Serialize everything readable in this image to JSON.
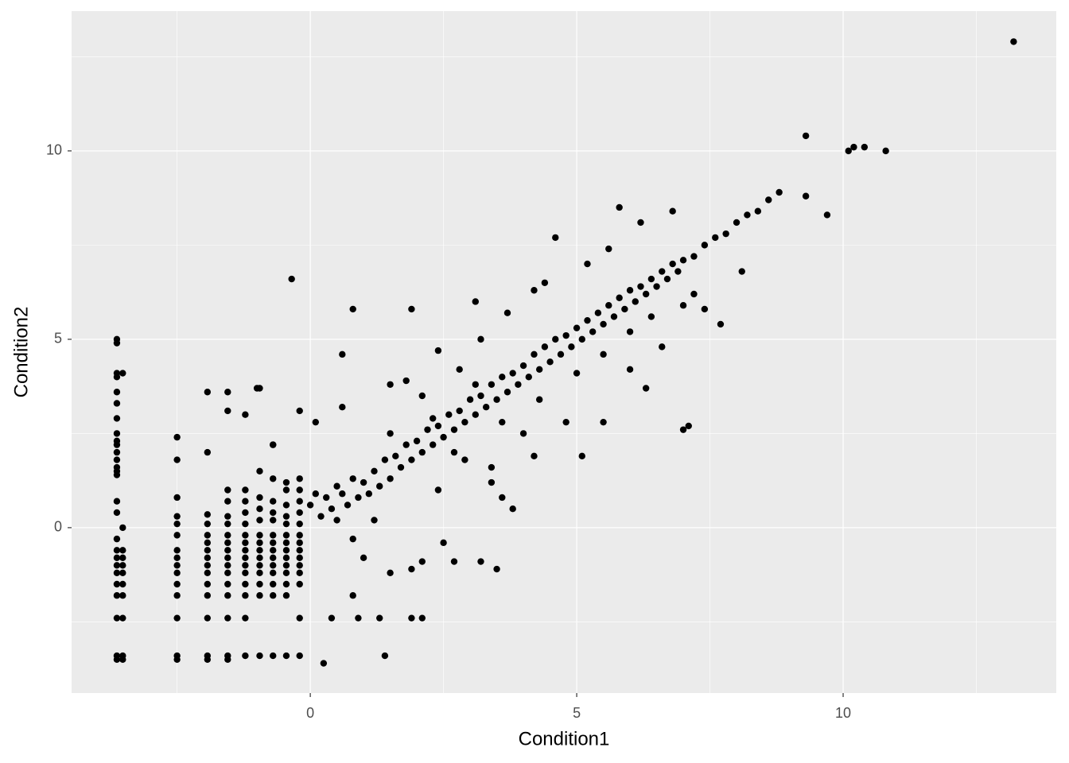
{
  "chart_data": {
    "type": "scatter",
    "x_label": "Condition1",
    "y_label": "Condition2",
    "color": "#000000",
    "background": "#ebebeb",
    "grid": true,
    "xlim": [
      -4.48,
      14.0
    ],
    "ylim": [
      -4.39,
      13.71
    ],
    "xticks": [
      0,
      5,
      10
    ],
    "yticks": [
      0,
      5,
      10
    ],
    "xminor": [
      -2.5,
      2.5,
      7.5,
      12.5
    ],
    "yminor": [
      -2.5,
      2.5,
      7.5,
      12.5
    ],
    "x": [
      -3.63,
      -3.63,
      -3.63,
      -3.63,
      -3.63,
      -3.63,
      -3.63,
      -3.63,
      -3.63,
      -3.63,
      -3.63,
      -3.63,
      -3.63,
      -3.63,
      -3.63,
      -3.63,
      -3.63,
      -3.63,
      -3.63,
      -3.63,
      -3.63,
      -3.63,
      -3.63,
      -3.63,
      -3.63,
      -3.63,
      -3.63,
      -3.52,
      -3.52,
      -3.52,
      -3.52,
      -3.52,
      -3.52,
      -3.52,
      -3.52,
      -3.52,
      -3.52,
      -3.52,
      -2.5,
      -2.5,
      -2.5,
      -2.5,
      -2.5,
      -2.5,
      -2.5,
      -2.5,
      -2.5,
      -2.5,
      -2.5,
      -2.5,
      -2.5,
      -2.5,
      -2.5,
      -1.93,
      -1.93,
      -1.93,
      -1.93,
      -1.93,
      -1.93,
      -1.93,
      -1.93,
      -1.93,
      -1.93,
      -1.93,
      -1.93,
      -1.93,
      -1.93,
      -1.93,
      -1.55,
      -1.55,
      -1.55,
      -1.55,
      -1.55,
      -1.55,
      -1.55,
      -1.55,
      -1.55,
      -1.55,
      -1.55,
      -1.55,
      -1.55,
      -1.55,
      -1.55,
      -1.55,
      -1.55,
      -1.22,
      -1.22,
      -1.22,
      -1.22,
      -1.22,
      -1.22,
      -1.22,
      -1.22,
      -1.22,
      -1.22,
      -1.22,
      -1.22,
      -1.22,
      -1.22,
      -1.22,
      -0.95,
      -0.95,
      -0.95,
      -0.95,
      -0.95,
      -0.95,
      -0.95,
      -0.95,
      -0.95,
      -0.95,
      -0.95,
      -0.95,
      -0.95,
      -0.95,
      -0.7,
      -0.7,
      -0.7,
      -0.7,
      -0.7,
      -0.7,
      -0.7,
      -0.7,
      -0.7,
      -0.7,
      -0.7,
      -0.7,
      -0.7,
      -0.7,
      -0.45,
      -0.45,
      -0.45,
      -0.45,
      -0.45,
      -0.45,
      -0.45,
      -0.45,
      -0.45,
      -0.45,
      -0.45,
      -0.45,
      -0.45,
      -0.45,
      -0.2,
      -0.2,
      -0.2,
      -0.2,
      -0.2,
      -0.2,
      -0.2,
      -0.2,
      -0.2,
      -0.2,
      -0.2,
      -0.2,
      -0.2,
      -0.2,
      0.0,
      0.1,
      0.2,
      0.3,
      0.4,
      0.5,
      0.5,
      0.6,
      0.7,
      0.8,
      0.9,
      1.0,
      1.1,
      1.2,
      1.3,
      1.4,
      1.5,
      1.6,
      1.7,
      1.8,
      1.9,
      2.0,
      2.1,
      2.2,
      2.3,
      2.4,
      2.5,
      2.6,
      2.7,
      2.8,
      2.9,
      3.0,
      3.1,
      3.2,
      3.3,
      3.4,
      3.5,
      3.6,
      3.7,
      3.8,
      3.9,
      4.0,
      4.1,
      4.2,
      4.3,
      4.4,
      4.5,
      4.6,
      4.7,
      4.8,
      4.9,
      5.0,
      5.1,
      5.2,
      5.3,
      5.4,
      5.5,
      5.6,
      5.7,
      5.8,
      5.9,
      6.0,
      6.1,
      6.2,
      6.3,
      6.4,
      6.5,
      6.6,
      6.7,
      6.8,
      6.9,
      7.0,
      7.2,
      7.4,
      7.6,
      7.8,
      8.0,
      8.2,
      8.4,
      8.6,
      8.8,
      1.5,
      1.8,
      2.1,
      2.4,
      1.5,
      2.8,
      3.2,
      3.7,
      4.2,
      4.4,
      5.2,
      5.6,
      6.2,
      6.8,
      4.6,
      2.4,
      2.9,
      3.4,
      3.6,
      3.8,
      3.4,
      4.0,
      4.8,
      5.5,
      6.0,
      6.6,
      7.2,
      8.1,
      1.2,
      0.8,
      1.0,
      2.3,
      2.7,
      3.1,
      3.6,
      4.3,
      5.0,
      5.5,
      6.0,
      6.4,
      7.0,
      -0.35,
      0.6,
      0.8,
      1.9,
      3.1,
      13.2,
      9.3,
      10.1,
      10.2,
      10.4,
      10.8,
      9.7,
      9.3,
      5.8,
      7.0,
      7.1,
      6.3,
      7.7,
      7.4,
      5.1,
      4.2,
      3.5,
      3.2,
      2.7,
      2.5,
      2.1,
      1.9,
      1.4,
      2.1,
      1.9,
      1.3,
      0.9,
      0.4,
      0.25,
      1.5,
      0.8,
      -0.7,
      -1.0,
      -0.2,
      0.1,
      0.6
    ],
    "values": [
      5.0,
      4.9,
      4.1,
      4.0,
      3.6,
      3.3,
      2.9,
      2.5,
      2.3,
      2.2,
      2.0,
      1.8,
      1.6,
      1.5,
      1.4,
      0.7,
      0.4,
      -0.3,
      -0.6,
      -0.8,
      -1.0,
      -1.2,
      -1.5,
      -1.8,
      -2.4,
      -3.4,
      -3.5,
      4.1,
      0.0,
      -0.6,
      -0.8,
      -1.0,
      -1.2,
      -1.5,
      -1.8,
      -2.4,
      -3.4,
      -3.5,
      2.4,
      1.8,
      0.8,
      0.3,
      0.1,
      -0.2,
      -0.6,
      -0.8,
      -1.0,
      -1.2,
      -1.5,
      -1.8,
      -2.4,
      -3.4,
      -3.5,
      3.6,
      2.0,
      0.35,
      0.1,
      -0.2,
      -0.4,
      -0.6,
      -0.8,
      -1.0,
      -1.2,
      -1.5,
      -1.8,
      -2.4,
      -3.4,
      -3.5,
      3.6,
      3.1,
      1.0,
      0.7,
      0.3,
      0.1,
      -0.2,
      -0.4,
      -0.6,
      -0.8,
      -1.0,
      -1.2,
      -1.5,
      -1.8,
      -2.4,
      -3.4,
      -3.5,
      3.0,
      1.0,
      0.7,
      0.4,
      0.1,
      -0.2,
      -0.4,
      -0.6,
      -0.8,
      -1.0,
      -1.2,
      -1.5,
      -1.8,
      -2.4,
      -3.4,
      3.7,
      1.5,
      0.8,
      0.5,
      0.2,
      -0.2,
      -0.4,
      -0.6,
      -0.8,
      -1.0,
      -1.2,
      -1.5,
      -1.8,
      -3.4,
      2.2,
      1.3,
      0.7,
      0.4,
      0.2,
      -0.2,
      -0.4,
      -0.6,
      -0.8,
      -1.0,
      -1.2,
      -1.5,
      -1.8,
      -3.4,
      1.2,
      1.0,
      0.6,
      0.3,
      0.1,
      -0.2,
      -0.4,
      -0.6,
      -0.8,
      -1.0,
      -1.2,
      -1.5,
      -1.8,
      -3.4,
      1.3,
      1.0,
      0.7,
      0.4,
      0.1,
      -0.2,
      -0.4,
      -0.6,
      -0.8,
      -1.0,
      -1.2,
      -1.5,
      -2.4,
      -3.4,
      0.6,
      0.9,
      0.3,
      0.8,
      0.5,
      1.1,
      0.2,
      0.9,
      0.6,
      1.3,
      0.8,
      1.2,
      0.9,
      1.5,
      1.1,
      1.8,
      1.3,
      1.9,
      1.6,
      2.2,
      1.8,
      2.3,
      2.0,
      2.6,
      2.2,
      2.7,
      2.4,
      3.0,
      2.6,
      3.1,
      2.8,
      3.4,
      3.0,
      3.5,
      3.2,
      3.8,
      3.4,
      4.0,
      3.6,
      4.1,
      3.8,
      4.3,
      4.0,
      4.6,
      4.2,
      4.8,
      4.4,
      5.0,
      4.6,
      5.1,
      4.8,
      5.3,
      5.0,
      5.5,
      5.2,
      5.7,
      5.4,
      5.9,
      5.6,
      6.1,
      5.8,
      6.3,
      6.0,
      6.4,
      6.2,
      6.6,
      6.4,
      6.8,
      6.6,
      7.0,
      6.8,
      7.1,
      7.2,
      7.5,
      7.7,
      7.8,
      8.1,
      8.3,
      8.4,
      8.7,
      8.9,
      2.5,
      3.9,
      3.5,
      4.7,
      3.8,
      4.2,
      5.0,
      5.7,
      6.3,
      6.5,
      7.0,
      7.4,
      8.1,
      8.4,
      7.7,
      1.0,
      1.8,
      1.2,
      0.8,
      0.5,
      1.6,
      2.5,
      2.8,
      2.8,
      4.2,
      4.8,
      6.2,
      6.8,
      0.2,
      -0.3,
      -0.8,
      2.9,
      2.0,
      3.8,
      2.8,
      3.4,
      4.1,
      4.6,
      5.2,
      5.6,
      5.9,
      6.6,
      4.6,
      5.8,
      5.8,
      6.0,
      12.9,
      10.4,
      10.0,
      10.1,
      10.1,
      10.0,
      8.3,
      8.8,
      8.5,
      2.6,
      2.7,
      3.7,
      5.4,
      5.8,
      1.9,
      1.9,
      -1.1,
      -0.9,
      -0.9,
      -0.4,
      -0.9,
      -1.1,
      -3.4,
      -2.4,
      -2.4,
      -2.4,
      -2.4,
      -2.4,
      -3.6,
      -1.2,
      -1.8,
      2.2,
      3.7,
      3.1,
      2.8,
      3.2
    ]
  }
}
